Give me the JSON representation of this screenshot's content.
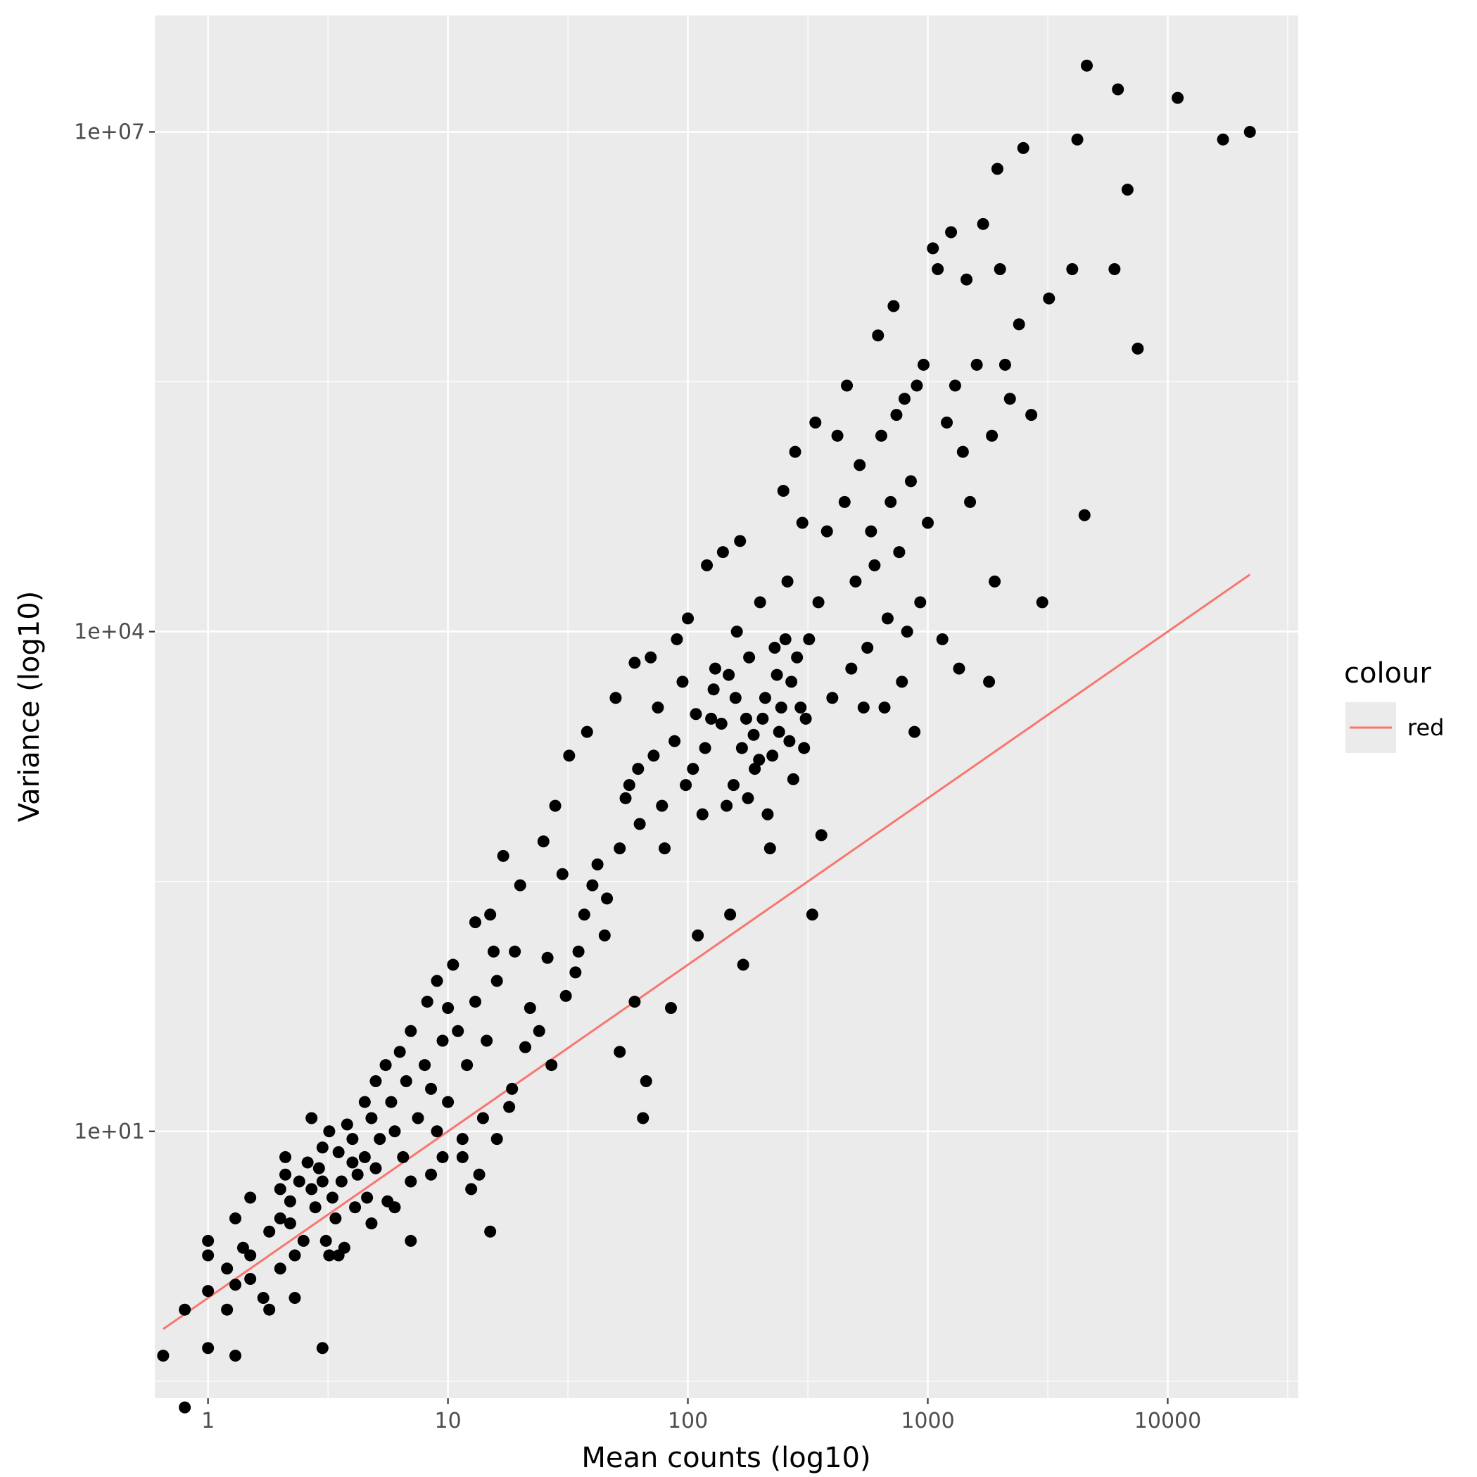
{
  "chart_data": {
    "type": "scatter",
    "xlabel": "Mean counts (log10)",
    "ylabel": "Variance (log10)",
    "x_scale": "log10",
    "y_scale": "log10",
    "xlim": [
      0.6,
      35000
    ],
    "ylim": [
      0.25,
      50000000
    ],
    "x_ticks": [
      1,
      10,
      100,
      1000,
      10000
    ],
    "x_tick_labels": [
      "1",
      "10",
      "100",
      "1000",
      "10000"
    ],
    "y_ticks": [
      10,
      10000,
      10000000
    ],
    "y_tick_labels": [
      "1e+01",
      "1e+04",
      "1e+07"
    ],
    "grid": true,
    "panel_background": "#ebebeb",
    "point_color": "#000000",
    "legend": {
      "title": "colour",
      "entries": [
        {
          "label": "red",
          "color": "#f8766d"
        }
      ],
      "position": "right"
    },
    "reference_line": {
      "color": "#f8766d",
      "x": [
        0.65,
        22000
      ],
      "y": [
        0.65,
        22000
      ]
    },
    "points": [
      [
        0.65,
        0.45
      ],
      [
        0.8,
        0.22
      ],
      [
        0.8,
        0.85
      ],
      [
        1.0,
        0.5
      ],
      [
        1.0,
        1.1
      ],
      [
        1.0,
        2.2
      ],
      [
        1.0,
        1.8
      ],
      [
        1.2,
        0.85
      ],
      [
        1.2,
        1.5
      ],
      [
        1.3,
        0.45
      ],
      [
        1.3,
        1.2
      ],
      [
        1.3,
        3.0
      ],
      [
        1.4,
        2.0
      ],
      [
        1.5,
        1.3
      ],
      [
        1.5,
        1.8
      ],
      [
        1.5,
        4.0
      ],
      [
        1.7,
        1.0
      ],
      [
        1.8,
        0.85
      ],
      [
        1.8,
        2.5
      ],
      [
        2.0,
        3.0
      ],
      [
        2.0,
        1.5
      ],
      [
        2.0,
        4.5
      ],
      [
        2.1,
        7.0
      ],
      [
        2.1,
        5.5
      ],
      [
        2.2,
        2.8
      ],
      [
        2.2,
        3.8
      ],
      [
        2.3,
        1.0
      ],
      [
        2.3,
        1.8
      ],
      [
        2.4,
        5.0
      ],
      [
        2.5,
        2.2
      ],
      [
        2.6,
        6.5
      ],
      [
        2.7,
        12.0
      ],
      [
        2.7,
        4.5
      ],
      [
        2.8,
        3.5
      ],
      [
        2.9,
        6.0
      ],
      [
        3.0,
        8.0
      ],
      [
        3.0,
        5.0
      ],
      [
        3.0,
        0.5
      ],
      [
        3.1,
        2.2
      ],
      [
        3.2,
        1.8
      ],
      [
        3.2,
        10.0
      ],
      [
        3.3,
        4.0
      ],
      [
        3.4,
        3.0
      ],
      [
        3.5,
        7.5
      ],
      [
        3.6,
        5.0
      ],
      [
        3.7,
        2.0
      ],
      [
        3.8,
        11.0
      ],
      [
        4.0,
        6.5
      ],
      [
        4.0,
        9.0
      ],
      [
        4.1,
        3.5
      ],
      [
        4.2,
        5.5
      ],
      [
        4.5,
        15.0
      ],
      [
        4.5,
        7.0
      ],
      [
        4.6,
        4.0
      ],
      [
        4.8,
        12.0
      ],
      [
        5.0,
        20.0
      ],
      [
        5.0,
        6.0
      ],
      [
        5.2,
        9.0
      ],
      [
        5.5,
        25.0
      ],
      [
        5.6,
        3.8
      ],
      [
        5.8,
        15.0
      ],
      [
        6.0,
        10.0
      ],
      [
        6.3,
        30.0
      ],
      [
        6.5,
        7.0
      ],
      [
        6.7,
        20.0
      ],
      [
        7.0,
        5.0
      ],
      [
        7.0,
        40.0
      ],
      [
        7.5,
        12.0
      ],
      [
        8.0,
        25.0
      ],
      [
        8.2,
        60.0
      ],
      [
        8.5,
        18.0
      ],
      [
        9.0,
        10.0
      ],
      [
        9.0,
        80.0
      ],
      [
        9.5,
        35.0
      ],
      [
        10.0,
        15.0
      ],
      [
        10.0,
        55.0
      ],
      [
        10.5,
        100.0
      ],
      [
        11.0,
        40.0
      ],
      [
        11.5,
        7.0
      ],
      [
        12.0,
        25.0
      ],
      [
        12.5,
        4.5
      ],
      [
        13.0,
        180.0
      ],
      [
        13.0,
        60.0
      ],
      [
        14.0,
        12.0
      ],
      [
        14.5,
        35.0
      ],
      [
        15.0,
        2.5
      ],
      [
        15.0,
        200.0
      ],
      [
        15.5,
        120.0
      ],
      [
        16.0,
        80.0
      ],
      [
        17.0,
        450.0
      ],
      [
        18.0,
        14.0
      ],
      [
        19.0,
        120.0
      ],
      [
        20.0,
        300.0
      ],
      [
        22.0,
        55.0
      ],
      [
        25.0,
        550.0
      ],
      [
        26.0,
        110.0
      ],
      [
        28.0,
        900.0
      ],
      [
        30.0,
        350.0
      ],
      [
        32.0,
        1800.0
      ],
      [
        35.0,
        120.0
      ],
      [
        38.0,
        2500.0
      ],
      [
        40.0,
        300.0
      ],
      [
        45.0,
        150.0
      ],
      [
        50.0,
        4000.0
      ],
      [
        52.0,
        30.0
      ],
      [
        55.0,
        1000.0
      ],
      [
        60.0,
        60.0
      ],
      [
        60.0,
        6500.0
      ],
      [
        62.0,
        1500.0
      ],
      [
        65.0,
        12.0
      ],
      [
        67.0,
        20.0
      ],
      [
        70.0,
        7000.0
      ],
      [
        75.0,
        3500.0
      ],
      [
        80.0,
        500.0
      ],
      [
        85.0,
        55.0
      ],
      [
        90.0,
        9000.0
      ],
      [
        95.0,
        5000.0
      ],
      [
        100.0,
        12000.0
      ],
      [
        105.0,
        1500.0
      ],
      [
        110.0,
        150.0
      ],
      [
        115.0,
        800.0
      ],
      [
        120.0,
        25000.0
      ],
      [
        125.0,
        3000.0
      ],
      [
        130.0,
        6000.0
      ],
      [
        140.0,
        30000.0
      ],
      [
        145.0,
        900.0
      ],
      [
        150.0,
        200.0
      ],
      [
        155.0,
        1200.0
      ],
      [
        160.0,
        10000.0
      ],
      [
        165.0,
        35000.0
      ],
      [
        170.0,
        100.0
      ],
      [
        175.0,
        3000.0
      ],
      [
        180.0,
        7000.0
      ],
      [
        190.0,
        1500.0
      ],
      [
        200.0,
        15000.0
      ],
      [
        210.0,
        4000.0
      ],
      [
        220.0,
        500.0
      ],
      [
        230.0,
        8000.0
      ],
      [
        240.0,
        2500.0
      ],
      [
        250.0,
        70000.0
      ],
      [
        260.0,
        20000.0
      ],
      [
        270.0,
        5000.0
      ],
      [
        280.0,
        120000.0
      ],
      [
        300.0,
        45000.0
      ],
      [
        310.0,
        3000.0
      ],
      [
        320.0,
        9000.0
      ],
      [
        330.0,
        200.0
      ],
      [
        340.0,
        180000.0
      ],
      [
        350.0,
        15000.0
      ],
      [
        360.0,
        600.0
      ],
      [
        380.0,
        40000.0
      ],
      [
        400.0,
        4000.0
      ],
      [
        420.0,
        150000.0
      ],
      [
        450.0,
        60000.0
      ],
      [
        460.0,
        300000.0
      ],
      [
        480.0,
        6000.0
      ],
      [
        500.0,
        20000.0
      ],
      [
        520.0,
        100000.0
      ],
      [
        540.0,
        3500.0
      ],
      [
        560.0,
        8000.0
      ],
      [
        580.0,
        40000.0
      ],
      [
        600.0,
        25000.0
      ],
      [
        620.0,
        600000.0
      ],
      [
        640.0,
        150000.0
      ],
      [
        660.0,
        3500.0
      ],
      [
        680.0,
        12000.0
      ],
      [
        700.0,
        60000.0
      ],
      [
        720.0,
        900000.0
      ],
      [
        740.0,
        200000.0
      ],
      [
        760.0,
        30000.0
      ],
      [
        780.0,
        5000.0
      ],
      [
        800.0,
        250000.0
      ],
      [
        820.0,
        10000.0
      ],
      [
        850.0,
        80000.0
      ],
      [
        880.0,
        2500.0
      ],
      [
        900.0,
        300000.0
      ],
      [
        930.0,
        15000.0
      ],
      [
        960.0,
        400000.0
      ],
      [
        1000.0,
        45000.0
      ],
      [
        1050.0,
        2000000.0
      ],
      [
        1100.0,
        1500000.0
      ],
      [
        1150.0,
        9000.0
      ],
      [
        1200.0,
        180000.0
      ],
      [
        1250.0,
        2500000.0
      ],
      [
        1300.0,
        300000.0
      ],
      [
        1350.0,
        6000.0
      ],
      [
        1400.0,
        120000.0
      ],
      [
        1450.0,
        1300000.0
      ],
      [
        1500.0,
        60000.0
      ],
      [
        1600.0,
        400000.0
      ],
      [
        1700.0,
        2800000.0
      ],
      [
        1800.0,
        5000.0
      ],
      [
        1850.0,
        150000.0
      ],
      [
        1900.0,
        20000.0
      ],
      [
        1950.0,
        6000000.0
      ],
      [
        2000.0,
        1500000.0
      ],
      [
        2100.0,
        400000.0
      ],
      [
        2200.0,
        250000.0
      ],
      [
        2400.0,
        700000.0
      ],
      [
        2500.0,
        8000000.0
      ],
      [
        2700.0,
        200000.0
      ],
      [
        3000.0,
        15000.0
      ],
      [
        3200.0,
        1000000.0
      ],
      [
        4000.0,
        1500000.0
      ],
      [
        4200.0,
        9000000.0
      ],
      [
        4500.0,
        50000.0
      ],
      [
        4600.0,
        25000000.0
      ],
      [
        6000.0,
        1500000.0
      ],
      [
        6200.0,
        18000000.0
      ],
      [
        6800.0,
        4500000.0
      ],
      [
        7500.0,
        500000.0
      ],
      [
        11000.0,
        16000000.0
      ],
      [
        17000.0,
        9000000.0
      ],
      [
        22000.0,
        10000000.0
      ],
      [
        3.5,
        1.8
      ],
      [
        4.8,
        2.8
      ],
      [
        6.0,
        3.5
      ],
      [
        7.0,
        2.2
      ],
      [
        8.5,
        5.5
      ],
      [
        9.5,
        7.0
      ],
      [
        11.5,
        9.0
      ],
      [
        13.5,
        5.5
      ],
      [
        16.0,
        9.0
      ],
      [
        18.5,
        18.0
      ],
      [
        21.0,
        32.0
      ],
      [
        24.0,
        40.0
      ],
      [
        27.0,
        25.0
      ],
      [
        31.0,
        65.0
      ],
      [
        34.0,
        90.0
      ],
      [
        37.0,
        200.0
      ],
      [
        42.0,
        400.0
      ],
      [
        46.0,
        250.0
      ],
      [
        52.0,
        500.0
      ],
      [
        57.0,
        1200.0
      ],
      [
        63.0,
        700.0
      ],
      [
        72.0,
        1800.0
      ],
      [
        78.0,
        900.0
      ],
      [
        88.0,
        2200.0
      ],
      [
        98.0,
        1200.0
      ],
      [
        108.0,
        3200.0
      ],
      [
        118.0,
        2000.0
      ],
      [
        128.0,
        4500.0
      ],
      [
        138.0,
        2800.0
      ],
      [
        148.0,
        5500.0
      ],
      [
        158.0,
        4000.0
      ],
      [
        168.0,
        2000.0
      ],
      [
        178.0,
        1000.0
      ],
      [
        188.0,
        2400.0
      ],
      [
        198.0,
        1700.0
      ],
      [
        205.0,
        3000.0
      ],
      [
        215.0,
        800.0
      ],
      [
        225.0,
        1800.0
      ],
      [
        235.0,
        5500.0
      ],
      [
        245.0,
        3500.0
      ],
      [
        255.0,
        9000.0
      ],
      [
        265.0,
        2200.0
      ],
      [
        275.0,
        1300.0
      ],
      [
        285.0,
        7000.0
      ],
      [
        295.0,
        3500.0
      ],
      [
        305.0,
        2000.0
      ]
    ]
  }
}
